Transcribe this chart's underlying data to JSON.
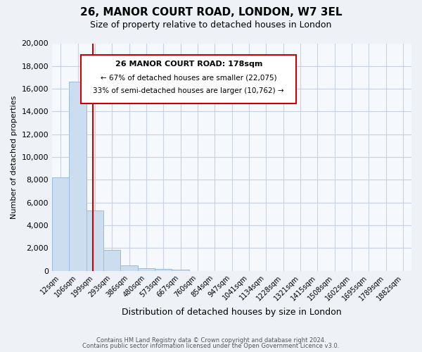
{
  "title": "26, MANOR COURT ROAD, LONDON, W7 3EL",
  "subtitle": "Size of property relative to detached houses in London",
  "bar_labels": [
    "12sqm",
    "106sqm",
    "199sqm",
    "293sqm",
    "386sqm",
    "480sqm",
    "573sqm",
    "667sqm",
    "760sqm",
    "854sqm",
    "947sqm",
    "1041sqm",
    "1134sqm",
    "1228sqm",
    "1321sqm",
    "1415sqm",
    "1508sqm",
    "1602sqm",
    "1695sqm",
    "1789sqm",
    "1882sqm"
  ],
  "bar_values": [
    8200,
    16600,
    5300,
    1850,
    450,
    200,
    130,
    70,
    0,
    0,
    0,
    0,
    0,
    0,
    0,
    0,
    0,
    0,
    0,
    0,
    0
  ],
  "bar_color": "#ccddef",
  "bar_edge_color": "#99bbdd",
  "property_line_x": 1.87,
  "property_line_color": "#cc0000",
  "ylim": [
    0,
    20000
  ],
  "yticks": [
    0,
    2000,
    4000,
    6000,
    8000,
    10000,
    12000,
    14000,
    16000,
    18000,
    20000
  ],
  "ylabel": "Number of detached properties",
  "xlabel": "Distribution of detached houses by size in London",
  "annotation_title": "26 MANOR COURT ROAD: 178sqm",
  "annotation_line1": "← 67% of detached houses are smaller (22,075)",
  "annotation_line2": "33% of semi-detached houses are larger (10,762) →",
  "annotation_box_color": "#ffffff",
  "annotation_box_edge": "#cc0000",
  "footer1": "Contains HM Land Registry data © Crown copyright and database right 2024.",
  "footer2": "Contains public sector information licensed under the Open Government Licence v3.0.",
  "bg_color": "#eef2f7",
  "plot_bg_color": "#f5f8fc",
  "grid_color": "#c8d2e0"
}
